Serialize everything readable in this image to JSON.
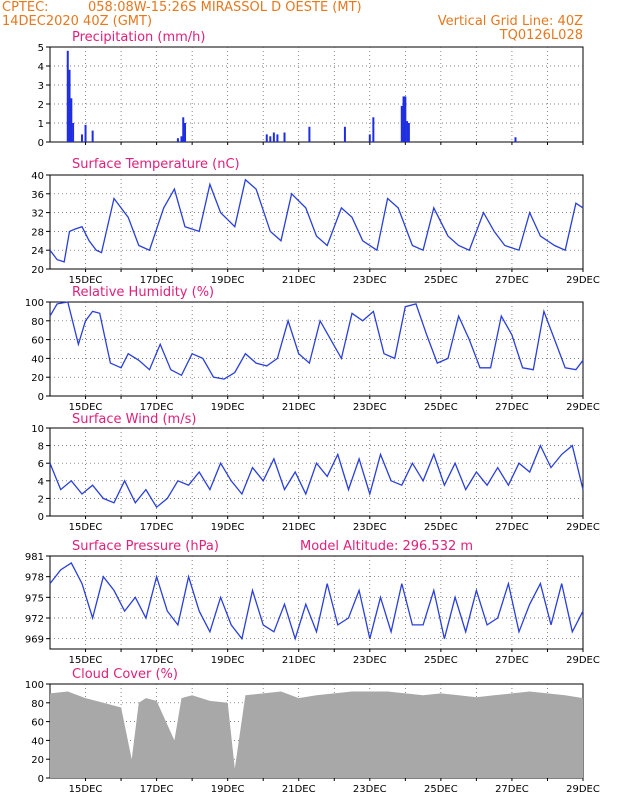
{
  "header": {
    "source": "CPTEC:",
    "location": "058:08W-15:26S   MIRASSOL D OESTE (MT)",
    "run_time": "14DEC2020 40Z (GMT)",
    "grid_note": "Vertical Grid Line: 40Z",
    "model_code": "TQ0126L028"
  },
  "x_ticks": [
    "15DEC",
    "17DEC",
    "19DEC",
    "21DEC",
    "23DEC",
    "25DEC",
    "27DEC",
    "29DEC"
  ],
  "colors": {
    "line": "#2a3fd9",
    "bars": "#1e2ee0",
    "cloud": "#a8a8a8",
    "title": "#e0207a",
    "header": "#e6781e"
  },
  "chart_data": [
    {
      "type": "bar",
      "title": "Precipitation (mm/h)",
      "ylim": [
        0,
        5
      ],
      "yticks": [
        "0",
        "1",
        "2",
        "3",
        "4",
        "5"
      ],
      "x_unit": "days since 14DEC2020 40Z",
      "points": [
        [
          0.5,
          4.8
        ],
        [
          0.55,
          3.8
        ],
        [
          0.6,
          2.3
        ],
        [
          0.65,
          1.0
        ],
        [
          0.9,
          0.4
        ],
        [
          1.0,
          0.9
        ],
        [
          1.2,
          0.6
        ],
        [
          3.6,
          0.2
        ],
        [
          3.7,
          0.3
        ],
        [
          3.75,
          1.3
        ],
        [
          3.8,
          1.0
        ],
        [
          6.1,
          0.4
        ],
        [
          6.2,
          0.3
        ],
        [
          6.3,
          0.5
        ],
        [
          6.4,
          0.4
        ],
        [
          6.6,
          0.5
        ],
        [
          7.3,
          0.8
        ],
        [
          8.3,
          0.8
        ],
        [
          9.0,
          0.4
        ],
        [
          9.1,
          1.3
        ],
        [
          9.9,
          1.9
        ],
        [
          9.95,
          2.4
        ],
        [
          10.0,
          2.4
        ],
        [
          10.05,
          1.1
        ],
        [
          10.1,
          1.0
        ],
        [
          13.1,
          0.25
        ]
      ]
    },
    {
      "type": "line",
      "title": "Surface Temperature (nC)",
      "ylim": [
        20,
        40
      ],
      "yticks": [
        "20",
        "24",
        "28",
        "32",
        "36",
        "40"
      ],
      "x": [
        0,
        0.2,
        0.4,
        0.55,
        0.7,
        0.9,
        1.1,
        1.3,
        1.45,
        1.8,
        2.2,
        2.5,
        2.8,
        3.2,
        3.5,
        3.8,
        4.2,
        4.5,
        4.8,
        5.2,
        5.5,
        5.8,
        6.2,
        6.5,
        6.8,
        7.2,
        7.5,
        7.8,
        8.2,
        8.5,
        8.8,
        9.2,
        9.5,
        9.8,
        10.2,
        10.5,
        10.8,
        11.2,
        11.5,
        11.8,
        12.2,
        12.5,
        12.8,
        13.2,
        13.5,
        13.8,
        14.2,
        14.5,
        14.8,
        15.0
      ],
      "y": [
        24,
        22,
        21.5,
        28,
        28.5,
        29,
        26,
        24,
        23.5,
        35,
        31,
        25,
        24,
        33,
        37,
        29,
        28,
        38,
        32,
        29,
        39,
        37,
        28,
        26,
        36,
        33,
        27,
        25,
        33,
        31,
        26,
        24,
        35,
        33,
        25,
        24,
        33,
        27,
        25,
        24,
        32,
        28,
        25,
        24,
        32,
        27,
        25,
        24,
        34,
        33
      ]
    },
    {
      "type": "line",
      "title": "Relative Humidity (%)",
      "ylim": [
        0,
        100
      ],
      "yticks": [
        "0",
        "20",
        "40",
        "60",
        "80",
        "100"
      ],
      "x": [
        0,
        0.2,
        0.5,
        0.8,
        1.0,
        1.2,
        1.4,
        1.7,
        2.0,
        2.2,
        2.5,
        2.8,
        3.1,
        3.4,
        3.7,
        4.0,
        4.3,
        4.6,
        4.9,
        5.2,
        5.5,
        5.8,
        6.1,
        6.4,
        6.7,
        7.0,
        7.3,
        7.6,
        7.9,
        8.2,
        8.5,
        8.8,
        9.1,
        9.4,
        9.7,
        10.0,
        10.3,
        10.6,
        10.9,
        11.2,
        11.5,
        11.8,
        12.1,
        12.4,
        12.7,
        13.0,
        13.3,
        13.6,
        13.9,
        14.2,
        14.5,
        14.8,
        15.0
      ],
      "y": [
        85,
        98,
        100,
        55,
        80,
        90,
        88,
        35,
        30,
        45,
        38,
        28,
        55,
        28,
        22,
        45,
        40,
        20,
        18,
        25,
        45,
        35,
        32,
        40,
        80,
        45,
        35,
        80,
        60,
        40,
        88,
        80,
        90,
        45,
        40,
        95,
        98,
        65,
        35,
        40,
        85,
        60,
        30,
        30,
        85,
        65,
        30,
        28,
        90,
        60,
        30,
        28,
        38
      ]
    },
    {
      "type": "line",
      "title": "Surface Wind (m/s)",
      "ylim": [
        0,
        10
      ],
      "yticks": [
        "0",
        "2",
        "4",
        "6",
        "8",
        "10"
      ],
      "x": [
        0,
        0.3,
        0.6,
        0.9,
        1.2,
        1.5,
        1.8,
        2.1,
        2.4,
        2.7,
        3.0,
        3.3,
        3.6,
        3.9,
        4.2,
        4.5,
        4.8,
        5.1,
        5.4,
        5.7,
        6.0,
        6.3,
        6.6,
        6.9,
        7.2,
        7.5,
        7.8,
        8.1,
        8.4,
        8.7,
        9.0,
        9.3,
        9.6,
        9.9,
        10.2,
        10.5,
        10.8,
        11.1,
        11.4,
        11.7,
        12.0,
        12.3,
        12.6,
        12.9,
        13.2,
        13.5,
        13.8,
        14.1,
        14.4,
        14.7,
        15.0
      ],
      "y": [
        6,
        3,
        4,
        2.5,
        3.5,
        2,
        1.5,
        4,
        1.5,
        3,
        1,
        2,
        4,
        3.5,
        5,
        3,
        6,
        4,
        2.5,
        5.5,
        4,
        6.5,
        3,
        5,
        2.5,
        6,
        4.5,
        7,
        3,
        6.5,
        2.5,
        7,
        4,
        3.5,
        6,
        4,
        7,
        3.5,
        6,
        3,
        5,
        3.5,
        5.5,
        3.5,
        6,
        5,
        8,
        5.5,
        7,
        8,
        3
      ]
    },
    {
      "type": "line",
      "title": "Surface Pressure (hPa)",
      "annotation": "Model Altitude: 296.532 m",
      "ylim": [
        967.5,
        981
      ],
      "yticks": [
        "969",
        "972",
        "975",
        "978",
        "981"
      ],
      "x": [
        0,
        0.3,
        0.6,
        0.9,
        1.2,
        1.5,
        1.8,
        2.1,
        2.4,
        2.7,
        3.0,
        3.3,
        3.6,
        3.9,
        4.2,
        4.5,
        4.8,
        5.1,
        5.4,
        5.7,
        6.0,
        6.3,
        6.6,
        6.9,
        7.2,
        7.5,
        7.8,
        8.1,
        8.4,
        8.7,
        9.0,
        9.3,
        9.6,
        9.9,
        10.2,
        10.5,
        10.8,
        11.1,
        11.4,
        11.7,
        12.0,
        12.3,
        12.6,
        12.9,
        13.2,
        13.5,
        13.8,
        14.1,
        14.4,
        14.7,
        15.0
      ],
      "y": [
        977,
        979,
        980,
        977,
        972,
        978,
        976,
        973,
        975,
        972,
        978,
        973,
        971,
        978,
        973,
        970,
        975,
        971,
        969,
        976,
        971,
        970,
        974,
        969,
        974,
        970,
        977,
        971,
        972,
        976,
        969,
        975,
        970,
        977,
        971,
        971,
        976,
        969,
        975,
        970,
        976,
        971,
        972,
        977,
        970,
        974,
        977,
        971,
        977,
        970,
        973
      ]
    },
    {
      "type": "area",
      "title": "Cloud Cover (%)",
      "ylim": [
        0,
        100
      ],
      "yticks": [
        "0",
        "20",
        "40",
        "60",
        "80",
        "100"
      ],
      "x": [
        0,
        0.5,
        1.0,
        1.5,
        2.0,
        2.3,
        2.5,
        2.7,
        3.0,
        3.5,
        3.7,
        4.0,
        4.5,
        5.0,
        5.2,
        5.5,
        6.0,
        6.5,
        7.0,
        7.5,
        8.0,
        8.5,
        9.0,
        9.5,
        10.0,
        10.5,
        11.0,
        11.5,
        12.0,
        12.5,
        13.0,
        13.5,
        14.0,
        14.5,
        15.0
      ],
      "y": [
        90,
        92,
        85,
        80,
        75,
        20,
        80,
        85,
        82,
        40,
        85,
        88,
        82,
        80,
        10,
        88,
        90,
        92,
        85,
        88,
        90,
        92,
        92,
        92,
        90,
        88,
        90,
        88,
        86,
        88,
        90,
        92,
        90,
        88,
        85
      ]
    }
  ]
}
